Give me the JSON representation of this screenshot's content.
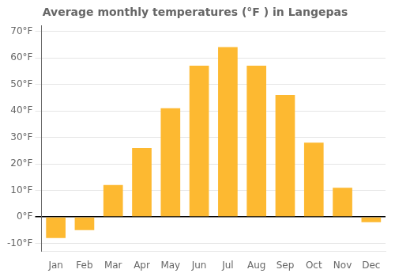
{
  "chart_data": {
    "type": "bar",
    "title": "Average monthly temperatures (°F ) in Langepas",
    "categories": [
      "Jan",
      "Feb",
      "Mar",
      "Apr",
      "May",
      "Jun",
      "Jul",
      "Aug",
      "Sep",
      "Oct",
      "Nov",
      "Dec"
    ],
    "values": [
      -8,
      -5,
      12,
      26,
      41,
      57,
      64,
      57,
      46,
      28,
      11,
      -2
    ],
    "color": "#FDB931",
    "ylim": [
      -13,
      72
    ],
    "yticks": [
      {
        "value": -10,
        "label": "-10°F"
      },
      {
        "value": 0,
        "label": "0°F"
      },
      {
        "value": 10,
        "label": "10°F"
      },
      {
        "value": 20,
        "label": "20°F"
      },
      {
        "value": 30,
        "label": "30°F"
      },
      {
        "value": 40,
        "label": "40°F"
      },
      {
        "value": 50,
        "label": "50°F"
      },
      {
        "value": 60,
        "label": "60°F"
      },
      {
        "value": 70,
        "label": "70°F"
      }
    ],
    "grid": true
  }
}
